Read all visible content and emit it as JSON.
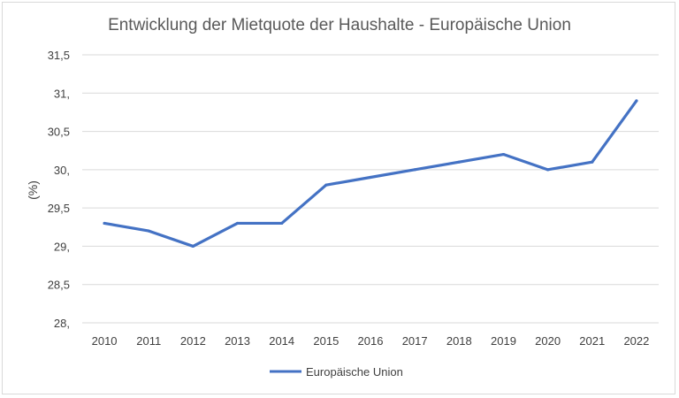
{
  "chart_data": {
    "type": "line",
    "title": "Entwicklung der Mietquote der Haushalte - Europäische Union",
    "ylabel": "(%)",
    "xlabel": "",
    "x": [
      "2010",
      "2011",
      "2012",
      "2013",
      "2014",
      "2015",
      "2016",
      "2017",
      "2018",
      "2019",
      "2020",
      "2021",
      "2022"
    ],
    "series": [
      {
        "name": "Europäische Union",
        "color": "#4472c4",
        "values": [
          29.3,
          29.2,
          29.0,
          29.3,
          29.3,
          29.8,
          29.9,
          30.0,
          30.1,
          30.2,
          30.0,
          30.1,
          30.9
        ]
      }
    ],
    "ylim": [
      28,
      31.5
    ],
    "yticks": [
      {
        "value": 28,
        "label": "28,"
      },
      {
        "value": 28.5,
        "label": "28,5"
      },
      {
        "value": 29,
        "label": "29,"
      },
      {
        "value": 29.5,
        "label": "29,5"
      },
      {
        "value": 30,
        "label": "30,"
      },
      {
        "value": 30.5,
        "label": "30,5"
      },
      {
        "value": 31,
        "label": "31,"
      },
      {
        "value": 31.5,
        "label": "31,5"
      }
    ],
    "grid": true,
    "legend": "bottom"
  }
}
